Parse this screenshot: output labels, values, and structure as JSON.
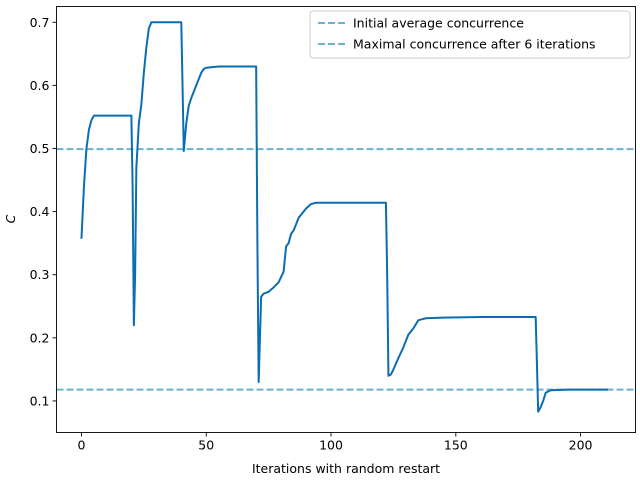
{
  "chart_data": {
    "type": "line",
    "xlabel": "Iterations with random restart",
    "ylabel": "C",
    "xlim": [
      -10,
      222
    ],
    "ylim": [
      0.05,
      0.725
    ],
    "x_ticks": [
      0,
      50,
      100,
      150,
      200
    ],
    "y_ticks": [
      0.1,
      0.2,
      0.3,
      0.4,
      0.5,
      0.6,
      0.7
    ],
    "legend_position": "top-right",
    "grid": false,
    "series": [
      {
        "color": "#0a6eb0",
        "x": [
          0,
          1,
          2,
          3,
          4,
          5,
          6,
          8,
          10,
          15,
          18,
          20,
          20.5,
          21,
          21.5,
          22,
          23,
          24,
          25,
          26,
          27,
          28,
          29,
          30,
          35,
          40,
          40.5,
          41,
          42,
          43,
          44,
          45,
          46,
          47,
          48,
          49,
          50,
          55,
          60,
          65,
          70,
          70.5,
          71,
          72,
          73,
          75,
          77,
          79,
          81,
          82,
          83,
          84,
          85,
          86,
          87,
          88,
          90,
          92,
          94,
          96,
          100,
          110,
          120,
          122,
          122.5,
          123,
          124,
          125,
          127,
          129,
          131,
          133,
          135,
          138,
          145,
          160,
          182,
          182.5,
          183,
          184,
          185,
          186,
          188,
          195,
          211
        ],
        "y": [
          0.357,
          0.44,
          0.5,
          0.53,
          0.545,
          0.552,
          0.552,
          0.552,
          0.552,
          0.552,
          0.552,
          0.552,
          0.44,
          0.22,
          0.3,
          0.47,
          0.54,
          0.57,
          0.62,
          0.66,
          0.69,
          0.7,
          0.7,
          0.7,
          0.7,
          0.7,
          0.6,
          0.496,
          0.54,
          0.568,
          0.58,
          0.59,
          0.6,
          0.61,
          0.62,
          0.626,
          0.628,
          0.63,
          0.63,
          0.63,
          0.63,
          0.35,
          0.13,
          0.265,
          0.27,
          0.273,
          0.28,
          0.288,
          0.305,
          0.345,
          0.35,
          0.365,
          0.37,
          0.38,
          0.39,
          0.395,
          0.405,
          0.412,
          0.414,
          0.414,
          0.414,
          0.414,
          0.414,
          0.414,
          0.3,
          0.14,
          0.142,
          0.15,
          0.168,
          0.185,
          0.205,
          0.215,
          0.228,
          0.231,
          0.232,
          0.233,
          0.233,
          0.16,
          0.083,
          0.09,
          0.1,
          0.113,
          0.117,
          0.118,
          0.118
        ]
      }
    ],
    "hlines": [
      {
        "name": "Initial average concurrence",
        "y": 0.499,
        "color": "#6bb4cc",
        "dashed": true
      },
      {
        "name": "Maximal concurrence after 6 iterations",
        "y": 0.118,
        "color": "#6bb4cc",
        "dashed": true
      }
    ]
  }
}
